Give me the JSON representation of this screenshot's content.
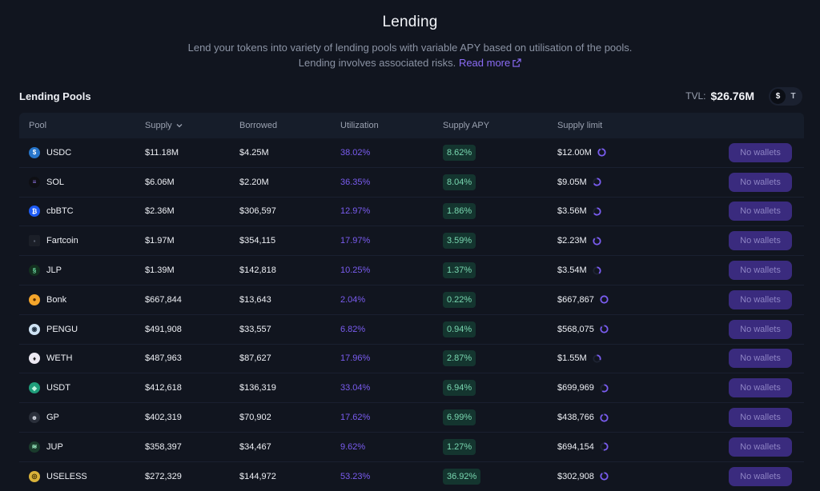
{
  "header": {
    "title": "Lending",
    "desc_line1": "Lend your tokens into variety of lending pools with variable APY based on utilisation of the pools.",
    "desc_line2": "Lending involves associated risks.",
    "read_more": "Read more"
  },
  "section": {
    "title": "Lending Pools",
    "tvl_label": "TVL:",
    "tvl_value": "$26.76M",
    "toggle_dollar": "$",
    "toggle_token": "T"
  },
  "columns": {
    "pool": "Pool",
    "supply": "Supply",
    "borrowed": "Borrowed",
    "utilization": "Utilization",
    "supply_apy": "Supply APY",
    "supply_limit": "Supply limit"
  },
  "colors": {
    "accent": "#7a5cf0",
    "apy_green": "#79d7b0",
    "button_bg": "#3a2b7e",
    "background": "#11151f"
  },
  "rows": [
    {
      "pool": "USDC",
      "icon": "usdc-icon",
      "supply": "$11.18M",
      "borrowed": "$4.25M",
      "utilization": "38.02%",
      "apy": "8.62%",
      "limit": "$12.00M",
      "fill": 0.93,
      "action": "No wallets"
    },
    {
      "pool": "SOL",
      "icon": "sol-icon",
      "supply": "$6.06M",
      "borrowed": "$2.20M",
      "utilization": "36.35%",
      "apy": "8.04%",
      "limit": "$9.05M",
      "fill": 0.67,
      "action": "No wallets"
    },
    {
      "pool": "cbBTC",
      "icon": "cbbtc-icon",
      "supply": "$2.36M",
      "borrowed": "$306,597",
      "utilization": "12.97%",
      "apy": "1.86%",
      "limit": "$3.56M",
      "fill": 0.66,
      "action": "No wallets"
    },
    {
      "pool": "Fartcoin",
      "icon": "fartcoin-icon",
      "supply": "$1.97M",
      "borrowed": "$354,115",
      "utilization": "17.97%",
      "apy": "3.59%",
      "limit": "$2.23M",
      "fill": 0.88,
      "action": "No wallets"
    },
    {
      "pool": "JLP",
      "icon": "jlp-icon",
      "supply": "$1.39M",
      "borrowed": "$142,818",
      "utilization": "10.25%",
      "apy": "1.37%",
      "limit": "$3.54M",
      "fill": 0.39,
      "action": "No wallets"
    },
    {
      "pool": "Bonk",
      "icon": "bonk-icon",
      "supply": "$667,844",
      "borrowed": "$13,643",
      "utilization": "2.04%",
      "apy": "0.22%",
      "limit": "$667,867",
      "fill": 1.0,
      "action": "No wallets"
    },
    {
      "pool": "PENGU",
      "icon": "pengu-icon",
      "supply": "$491,908",
      "borrowed": "$33,557",
      "utilization": "6.82%",
      "apy": "0.94%",
      "limit": "$568,075",
      "fill": 0.87,
      "action": "No wallets"
    },
    {
      "pool": "WETH",
      "icon": "weth-icon",
      "supply": "$487,963",
      "borrowed": "$87,627",
      "utilization": "17.96%",
      "apy": "2.87%",
      "limit": "$1.55M",
      "fill": 0.31,
      "action": "No wallets"
    },
    {
      "pool": "USDT",
      "icon": "usdt-icon",
      "supply": "$412,618",
      "borrowed": "$136,319",
      "utilization": "33.04%",
      "apy": "6.94%",
      "limit": "$699,969",
      "fill": 0.59,
      "action": "No wallets"
    },
    {
      "pool": "GP",
      "icon": "gp-icon",
      "supply": "$402,319",
      "borrowed": "$70,902",
      "utilization": "17.62%",
      "apy": "6.99%",
      "limit": "$438,766",
      "fill": 0.92,
      "action": "No wallets"
    },
    {
      "pool": "JUP",
      "icon": "jup-icon",
      "supply": "$358,397",
      "borrowed": "$34,467",
      "utilization": "9.62%",
      "apy": "1.27%",
      "limit": "$694,154",
      "fill": 0.52,
      "action": "No wallets"
    },
    {
      "pool": "USELESS",
      "icon": "useless-icon",
      "supply": "$272,329",
      "borrowed": "$144,972",
      "utilization": "53.23%",
      "apy": "36.92%",
      "limit": "$302,908",
      "fill": 0.9,
      "action": "No wallets"
    }
  ]
}
